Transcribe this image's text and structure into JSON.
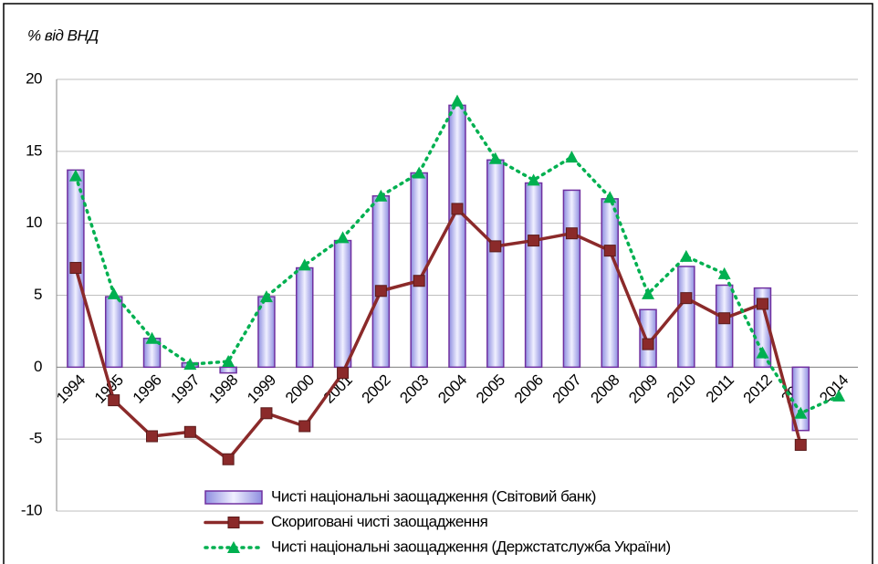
{
  "chart_data": {
    "type": "bar-line",
    "y_label": "% від ВНД",
    "categories": [
      "1994",
      "1995",
      "1996",
      "1997",
      "1998",
      "1999",
      "2000",
      "2001",
      "2002",
      "2003",
      "2004",
      "2005",
      "2006",
      "2007",
      "2008",
      "2009",
      "2010",
      "2011",
      "2012",
      "2013",
      "2014"
    ],
    "ylim": [
      -10,
      20
    ],
    "yticks": [
      -10,
      -5,
      0,
      5,
      10,
      15,
      20
    ],
    "grid": true,
    "legend": "bottom",
    "series": [
      {
        "name": "Чисті національні заощадження (Світовий банк)",
        "kind": "bar",
        "color": "#7030a0",
        "values": [
          13.7,
          4.9,
          2.0,
          0.3,
          -0.4,
          4.9,
          6.9,
          8.8,
          11.9,
          13.5,
          18.2,
          14.4,
          12.8,
          12.3,
          11.7,
          4.0,
          7.0,
          5.7,
          5.5,
          -4.4,
          null
        ]
      },
      {
        "name": "Скориговані чисті заощадження",
        "kind": "line",
        "color": "#8b2a2a",
        "values": [
          6.9,
          -2.3,
          -4.8,
          -4.5,
          -6.4,
          -3.2,
          -4.1,
          -0.4,
          5.3,
          6.0,
          11.0,
          8.4,
          8.8,
          9.3,
          8.1,
          1.6,
          4.8,
          3.4,
          4.4,
          -5.4,
          null
        ]
      },
      {
        "name": "Чисті національні заощадження (Держстатслужба України)",
        "kind": "dotted",
        "color": "#00b050",
        "values": [
          13.3,
          5.1,
          2.0,
          0.2,
          0.4,
          4.9,
          7.1,
          9.0,
          11.9,
          13.5,
          18.5,
          14.5,
          13.0,
          14.6,
          11.8,
          5.1,
          7.7,
          6.5,
          1.0,
          -3.2,
          -2.0
        ]
      }
    ]
  }
}
